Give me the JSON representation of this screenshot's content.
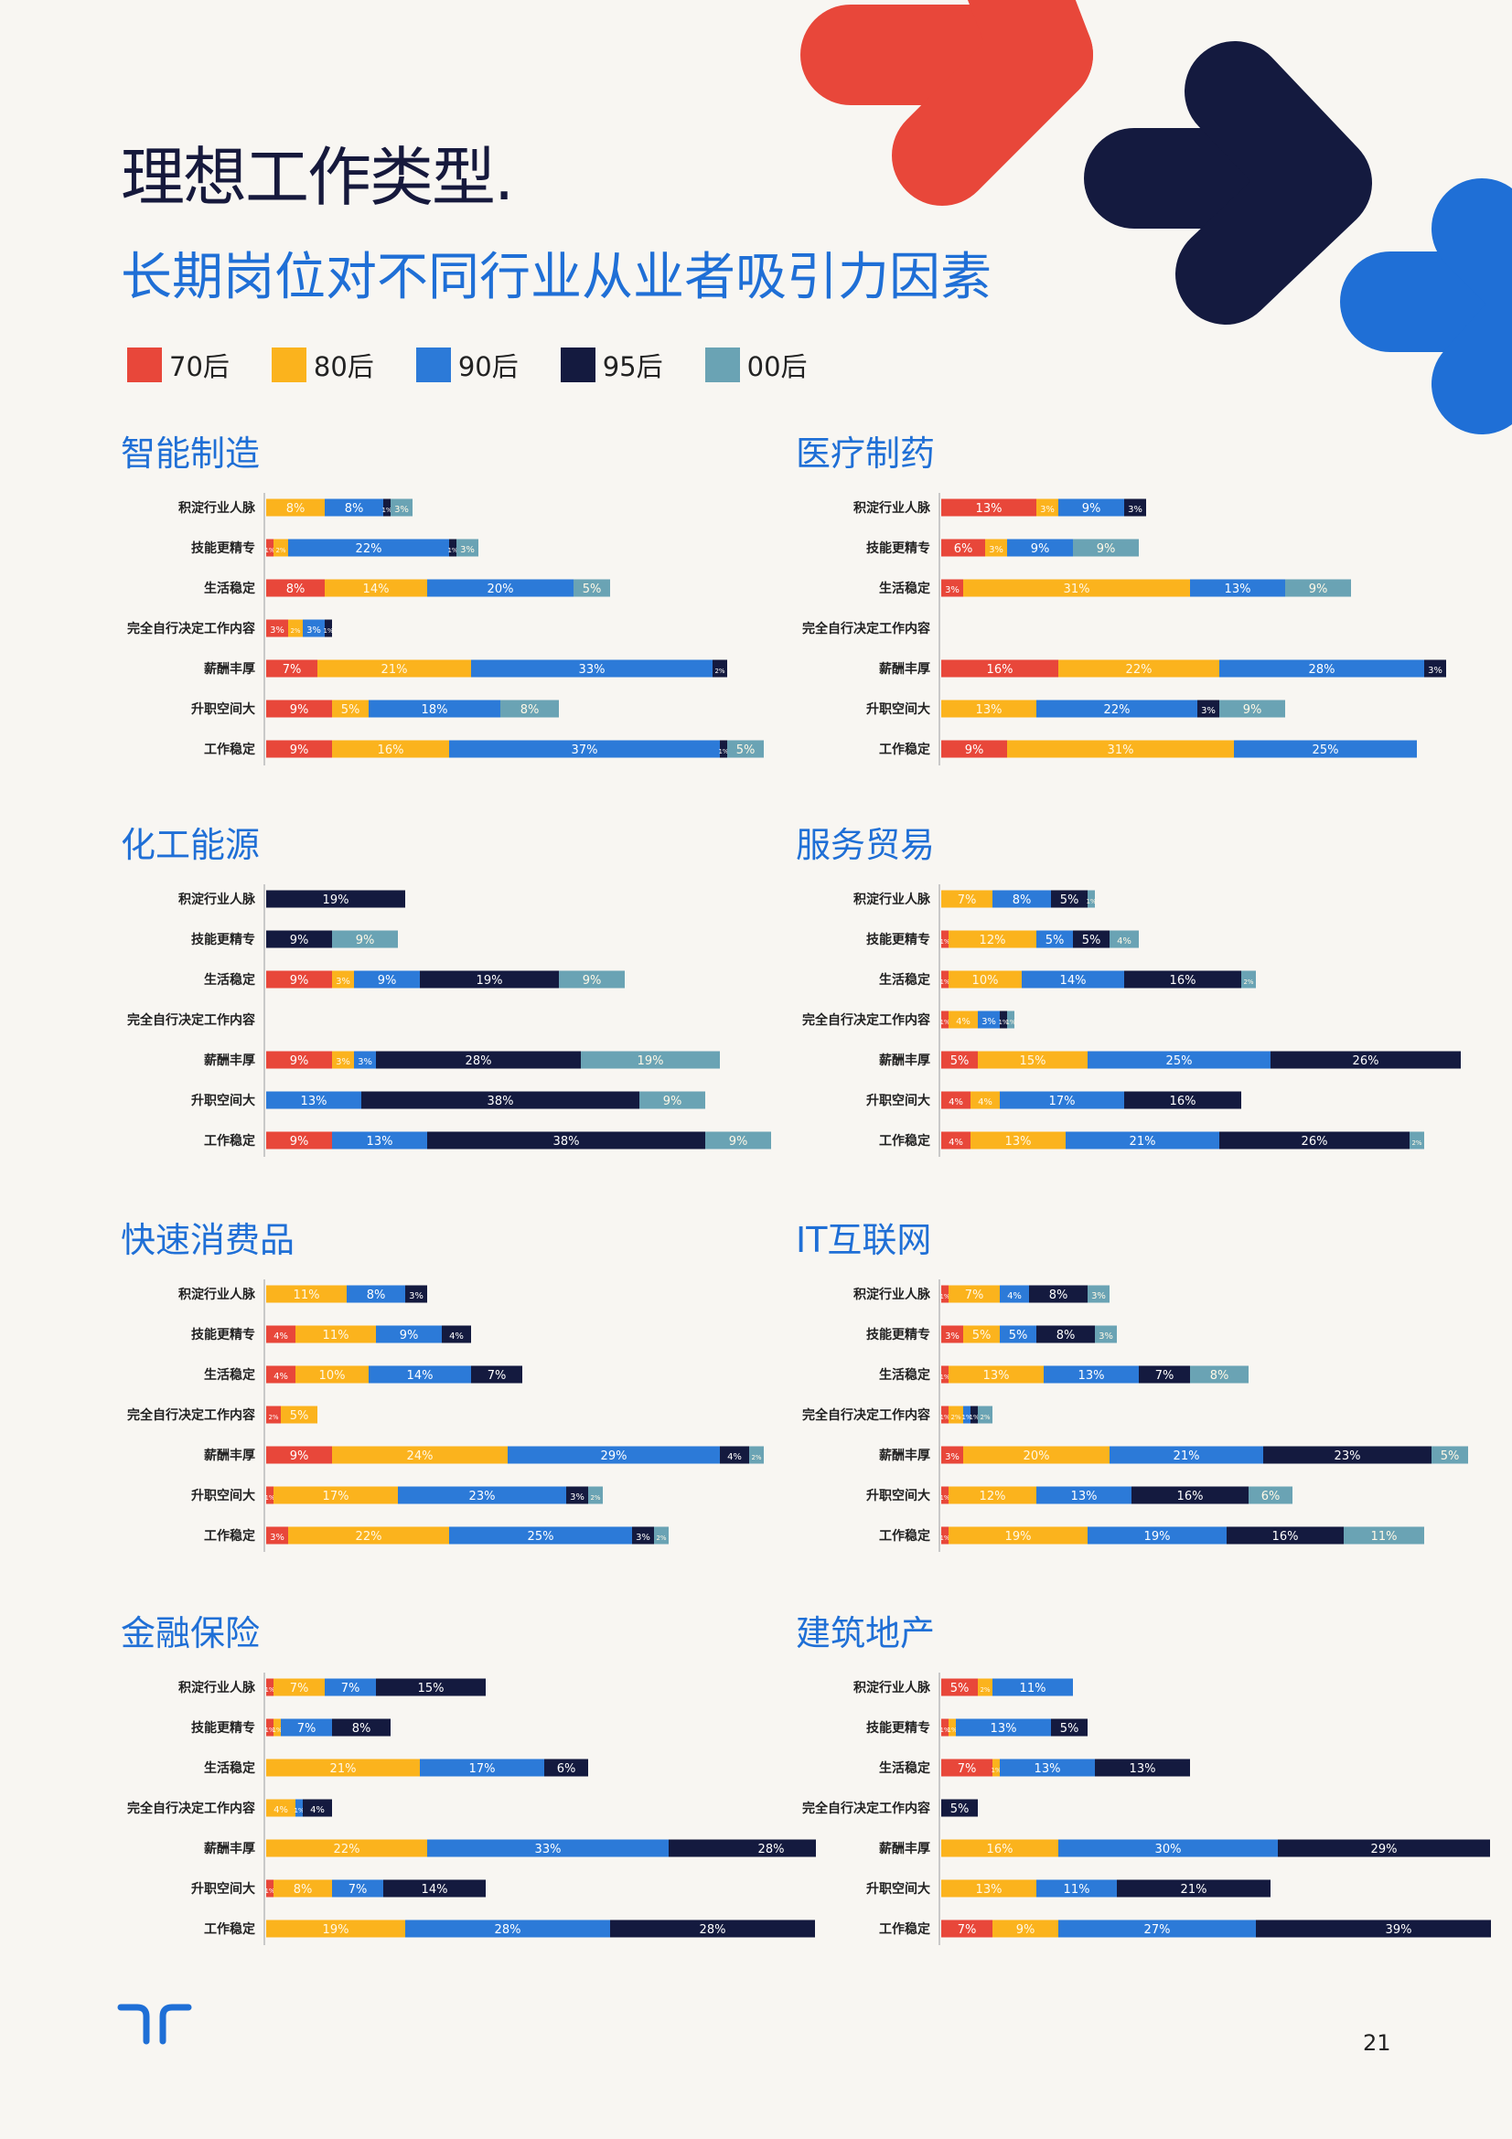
{
  "header": {
    "title": "理想工作类型.",
    "subtitle": "长期岗位对不同行业从业者吸引力因素"
  },
  "colors": {
    "c70": "#e8473a",
    "c80": "#fbb31d",
    "c90": "#2c7ad8",
    "c95": "#141a3f",
    "c00": "#6aa3b4"
  },
  "legend": [
    {
      "label": "70后",
      "color_key": "c70"
    },
    {
      "label": "80后",
      "color_key": "c80"
    },
    {
      "label": "90后",
      "color_key": "c90"
    },
    {
      "label": "95后",
      "color_key": "c95"
    },
    {
      "label": "00后",
      "color_key": "c00"
    }
  ],
  "chart_data": [
    {
      "title": "智能制造",
      "type": "bar",
      "stacked": true,
      "orientation": "horizontal",
      "categories": [
        "积淀行业人脉",
        "技能更精专",
        "生活稳定",
        "完全自行决定工作内容",
        "薪酬丰厚",
        "升职空间大",
        "工作稳定"
      ],
      "series": [
        {
          "name": "70后",
          "values": [
            0,
            1,
            8,
            3,
            7,
            9,
            9
          ]
        },
        {
          "name": "80后",
          "values": [
            8,
            2,
            14,
            2,
            21,
            5,
            16
          ]
        },
        {
          "name": "90后",
          "values": [
            8,
            22,
            20,
            3,
            33,
            18,
            37
          ]
        },
        {
          "name": "95后",
          "values": [
            1,
            1,
            0,
            1,
            2,
            0,
            1
          ]
        },
        {
          "name": "00后",
          "values": [
            3,
            3,
            5,
            0,
            0,
            8,
            5
          ]
        }
      ]
    },
    {
      "title": "医疗制药",
      "type": "bar",
      "stacked": true,
      "orientation": "horizontal",
      "categories": [
        "积淀行业人脉",
        "技能更精专",
        "生活稳定",
        "完全自行决定工作内容",
        "薪酬丰厚",
        "升职空间大",
        "工作稳定"
      ],
      "series": [
        {
          "name": "70后",
          "values": [
            13,
            6,
            3,
            0,
            16,
            0,
            9
          ]
        },
        {
          "name": "80后",
          "values": [
            3,
            3,
            31,
            0,
            22,
            13,
            31
          ]
        },
        {
          "name": "90后",
          "values": [
            9,
            9,
            13,
            0,
            28,
            22,
            25
          ]
        },
        {
          "name": "95后",
          "values": [
            3,
            0,
            0,
            0,
            3,
            3,
            0
          ]
        },
        {
          "name": "00后",
          "values": [
            0,
            9,
            9,
            0,
            0,
            9,
            0
          ]
        }
      ]
    },
    {
      "title": "化工能源",
      "type": "bar",
      "stacked": true,
      "orientation": "horizontal",
      "categories": [
        "积淀行业人脉",
        "技能更精专",
        "生活稳定",
        "完全自行决定工作内容",
        "薪酬丰厚",
        "升职空间大",
        "工作稳定"
      ],
      "series": [
        {
          "name": "70后",
          "values": [
            0,
            0,
            9,
            0,
            9,
            0,
            9
          ]
        },
        {
          "name": "80后",
          "values": [
            0,
            0,
            3,
            0,
            3,
            0,
            0
          ]
        },
        {
          "name": "90后",
          "values": [
            0,
            0,
            9,
            0,
            3,
            13,
            13
          ]
        },
        {
          "name": "95后",
          "values": [
            19,
            9,
            19,
            0,
            28,
            38,
            38
          ]
        },
        {
          "name": "00后",
          "values": [
            0,
            9,
            9,
            0,
            19,
            9,
            9
          ]
        }
      ]
    },
    {
      "title": "服务贸易",
      "type": "bar",
      "stacked": true,
      "orientation": "horizontal",
      "categories": [
        "积淀行业人脉",
        "技能更精专",
        "生活稳定",
        "完全自行决定工作内容",
        "薪酬丰厚",
        "升职空间大",
        "工作稳定"
      ],
      "series": [
        {
          "name": "70后",
          "values": [
            0,
            1,
            1,
            1,
            5,
            4,
            4
          ]
        },
        {
          "name": "80后",
          "values": [
            7,
            12,
            10,
            4,
            15,
            4,
            13
          ]
        },
        {
          "name": "90后",
          "values": [
            8,
            5,
            14,
            3,
            25,
            17,
            21
          ]
        },
        {
          "name": "95后",
          "values": [
            5,
            5,
            16,
            1,
            26,
            16,
            26
          ]
        },
        {
          "name": "00后",
          "values": [
            1,
            4,
            2,
            1,
            0,
            0,
            2
          ]
        }
      ]
    },
    {
      "title": "快速消费品",
      "type": "bar",
      "stacked": true,
      "orientation": "horizontal",
      "categories": [
        "积淀行业人脉",
        "技能更精专",
        "生活稳定",
        "完全自行决定工作内容",
        "薪酬丰厚",
        "升职空间大",
        "工作稳定"
      ],
      "series": [
        {
          "name": "70后",
          "values": [
            0,
            4,
            4,
            2,
            9,
            1,
            3
          ]
        },
        {
          "name": "80后",
          "values": [
            11,
            11,
            10,
            5,
            24,
            17,
            22
          ]
        },
        {
          "name": "90后",
          "values": [
            8,
            9,
            14,
            0,
            29,
            23,
            25
          ]
        },
        {
          "name": "95后",
          "values": [
            3,
            4,
            7,
            0,
            4,
            3,
            3
          ]
        },
        {
          "name": "00后",
          "values": [
            0,
            0,
            0,
            0,
            2,
            2,
            2
          ]
        }
      ]
    },
    {
      "title": "IT互联网",
      "type": "bar",
      "stacked": true,
      "orientation": "horizontal",
      "categories": [
        "积淀行业人脉",
        "技能更精专",
        "生活稳定",
        "完全自行决定工作内容",
        "薪酬丰厚",
        "升职空间大",
        "工作稳定"
      ],
      "series": [
        {
          "name": "70后",
          "values": [
            1,
            3,
            1,
            1,
            3,
            1,
            1
          ]
        },
        {
          "name": "80后",
          "values": [
            7,
            5,
            13,
            2,
            20,
            12,
            19
          ]
        },
        {
          "name": "90后",
          "values": [
            4,
            5,
            13,
            1,
            21,
            13,
            19
          ]
        },
        {
          "name": "95后",
          "values": [
            8,
            8,
            7,
            1,
            23,
            16,
            16
          ]
        },
        {
          "name": "00后",
          "values": [
            3,
            3,
            8,
            2,
            5,
            6,
            11
          ]
        }
      ]
    },
    {
      "title": "金融保险",
      "type": "bar",
      "stacked": true,
      "orientation": "horizontal",
      "categories": [
        "积淀行业人脉",
        "技能更精专",
        "生活稳定",
        "完全自行决定工作内容",
        "薪酬丰厚",
        "升职空间大",
        "工作稳定"
      ],
      "series": [
        {
          "name": "70后",
          "values": [
            1,
            1,
            0,
            0,
            0,
            1,
            0
          ]
        },
        {
          "name": "80后",
          "values": [
            7,
            1,
            21,
            4,
            22,
            8,
            19
          ]
        },
        {
          "name": "90后",
          "values": [
            7,
            7,
            17,
            1,
            33,
            7,
            28
          ]
        },
        {
          "name": "95后",
          "values": [
            15,
            8,
            6,
            4,
            28,
            14,
            28
          ]
        },
        {
          "name": "00后",
          "values": [
            0,
            0,
            0,
            0,
            0,
            0,
            0
          ]
        }
      ]
    },
    {
      "title": "建筑地产",
      "type": "bar",
      "stacked": true,
      "orientation": "horizontal",
      "categories": [
        "积淀行业人脉",
        "技能更精专",
        "生活稳定",
        "完全自行决定工作内容",
        "薪酬丰厚",
        "升职空间大",
        "工作稳定"
      ],
      "series": [
        {
          "name": "70后",
          "values": [
            5,
            1,
            7,
            0,
            0,
            0,
            7
          ]
        },
        {
          "name": "80后",
          "values": [
            2,
            1,
            1,
            0,
            16,
            13,
            9
          ]
        },
        {
          "name": "90后",
          "values": [
            11,
            13,
            13,
            0,
            30,
            11,
            27
          ]
        },
        {
          "name": "95后",
          "values": [
            0,
            5,
            13,
            5,
            29,
            21,
            39
          ]
        },
        {
          "name": "00后",
          "values": [
            0,
            0,
            0,
            0,
            0,
            0,
            0
          ]
        }
      ]
    }
  ],
  "footer": {
    "page_number": "21"
  }
}
